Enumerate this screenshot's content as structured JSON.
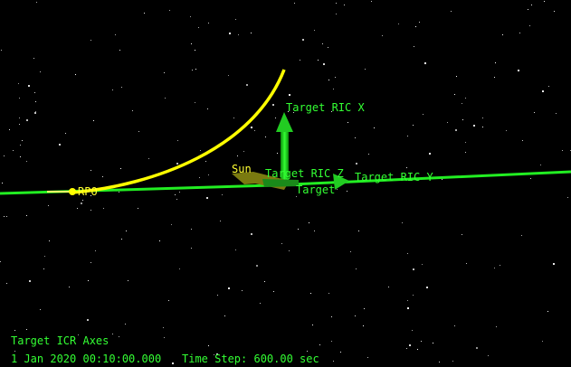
{
  "scene": {
    "labels": {
      "ric_x": "Target RIC X",
      "ric_y": "Target RIC Y",
      "ric_z": "Target RIC Z",
      "target": "Target",
      "sun": "Sun",
      "rpo": "RPO"
    }
  },
  "overlay": {
    "axes_frame": "Target ICR Axes",
    "datetime": "1 Jan 2020 00:10:00.000",
    "time_step": "Time Step: 600.00 sec"
  },
  "colors": {
    "background": "#000000",
    "orbit_target": "#22ee22",
    "orbit_rpo": "#ffff00",
    "label_green": "#33ff33",
    "label_yellow": "#ffff33"
  }
}
